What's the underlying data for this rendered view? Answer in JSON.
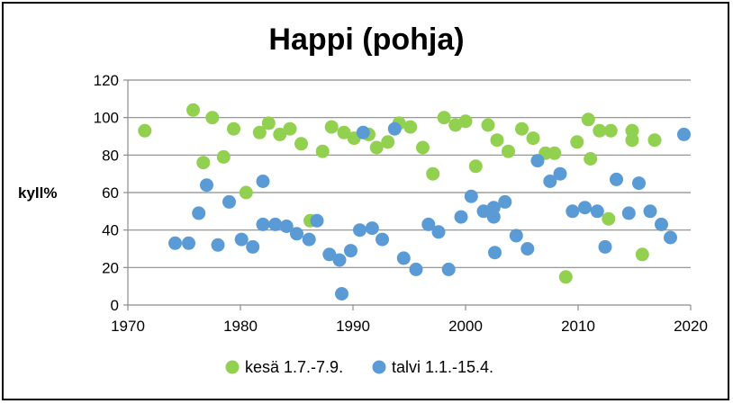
{
  "chart_data": {
    "type": "scatter",
    "title": "Happi (pohja)",
    "xlabel": "",
    "ylabel": "kyll%",
    "xlim": [
      1970,
      2020
    ],
    "ylim": [
      0,
      120
    ],
    "x_ticks": [
      1970,
      1980,
      1990,
      2000,
      2010,
      2020
    ],
    "y_ticks": [
      0,
      20,
      40,
      60,
      80,
      100,
      120
    ],
    "grid": true,
    "legend_position": "bottom",
    "series": [
      {
        "name": "kesä 1.7.-7.9.",
        "color": "#92d050",
        "points": [
          [
            1971.5,
            93
          ],
          [
            1975.8,
            104
          ],
          [
            1976.7,
            76
          ],
          [
            1977.5,
            100
          ],
          [
            1978.5,
            79
          ],
          [
            1979.4,
            94
          ],
          [
            1980.5,
            60
          ],
          [
            1981.7,
            92
          ],
          [
            1982.5,
            97
          ],
          [
            1983.5,
            91
          ],
          [
            1984.4,
            94
          ],
          [
            1985.4,
            86
          ],
          [
            1986.2,
            45
          ],
          [
            1987.3,
            82
          ],
          [
            1988.1,
            95
          ],
          [
            1989.2,
            92
          ],
          [
            1990.1,
            89
          ],
          [
            1991.4,
            91
          ],
          [
            1992.1,
            84
          ],
          [
            1993.1,
            87
          ],
          [
            1994.1,
            97
          ],
          [
            1995.1,
            95
          ],
          [
            1996.2,
            84
          ],
          [
            1997.1,
            70
          ],
          [
            1998.1,
            100
          ],
          [
            1999.1,
            96
          ],
          [
            2000.0,
            98
          ],
          [
            2000.9,
            74
          ],
          [
            2002.0,
            96
          ],
          [
            2002.8,
            88
          ],
          [
            2003.8,
            82
          ],
          [
            2005.0,
            94
          ],
          [
            2006.0,
            89
          ],
          [
            2007.1,
            81
          ],
          [
            2007.9,
            81
          ],
          [
            2008.9,
            15
          ],
          [
            2009.9,
            87
          ],
          [
            2010.9,
            99
          ],
          [
            2011.1,
            78
          ],
          [
            2011.9,
            93
          ],
          [
            2012.9,
            93
          ],
          [
            2012.7,
            46
          ],
          [
            2014.8,
            93
          ],
          [
            2014.8,
            88
          ],
          [
            2015.7,
            27
          ],
          [
            2016.8,
            88
          ]
        ]
      },
      {
        "name": "talvi 1.1.-15.4.",
        "color": "#5b9bd5",
        "points": [
          [
            1974.2,
            33
          ],
          [
            1975.4,
            33
          ],
          [
            1976.3,
            49
          ],
          [
            1977.0,
            64
          ],
          [
            1978.0,
            32
          ],
          [
            1979.0,
            55
          ],
          [
            1980.1,
            35
          ],
          [
            1981.1,
            31
          ],
          [
            1982.0,
            66
          ],
          [
            1982.0,
            43
          ],
          [
            1983.1,
            43
          ],
          [
            1984.1,
            42
          ],
          [
            1985.0,
            38
          ],
          [
            1986.1,
            35
          ],
          [
            1986.8,
            45
          ],
          [
            1987.9,
            27
          ],
          [
            1988.8,
            24
          ],
          [
            1989.0,
            6
          ],
          [
            1989.8,
            29
          ],
          [
            1990.6,
            40
          ],
          [
            1990.9,
            92
          ],
          [
            1991.7,
            41
          ],
          [
            1992.6,
            35
          ],
          [
            1993.7,
            94
          ],
          [
            1994.5,
            25
          ],
          [
            1995.6,
            19
          ],
          [
            1996.7,
            43
          ],
          [
            1997.6,
            39
          ],
          [
            1998.5,
            19
          ],
          [
            1999.6,
            47
          ],
          [
            2000.5,
            58
          ],
          [
            2001.6,
            50
          ],
          [
            2002.5,
            52
          ],
          [
            2002.5,
            47
          ],
          [
            2002.6,
            28
          ],
          [
            2003.5,
            55
          ],
          [
            2004.5,
            37
          ],
          [
            2005.5,
            30
          ],
          [
            2006.4,
            77
          ],
          [
            2007.5,
            66
          ],
          [
            2008.4,
            70
          ],
          [
            2009.5,
            50
          ],
          [
            2010.6,
            52
          ],
          [
            2011.7,
            50
          ],
          [
            2012.4,
            31
          ],
          [
            2013.4,
            67
          ],
          [
            2014.5,
            49
          ],
          [
            2015.4,
            65
          ],
          [
            2016.4,
            50
          ],
          [
            2017.4,
            43
          ],
          [
            2018.2,
            36
          ],
          [
            2019.4,
            91
          ]
        ]
      }
    ]
  }
}
